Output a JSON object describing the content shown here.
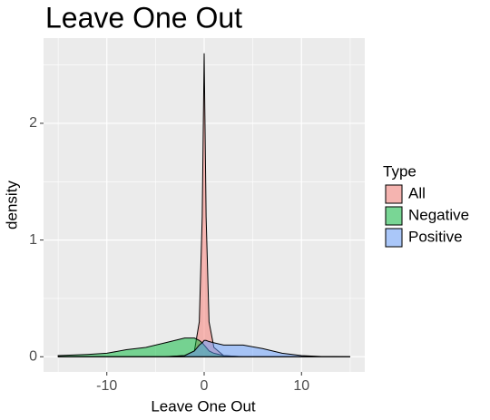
{
  "chart_data": {
    "type": "density",
    "title": "Leave One Out",
    "x_label": "Leave One Out",
    "y_label": "density",
    "legend_title": "Type",
    "x": [
      -15,
      -12,
      -10,
      -8,
      -6,
      -4,
      -2,
      -1,
      -0.5,
      -0.2,
      0,
      0.2,
      0.5,
      1,
      2,
      4,
      6,
      8,
      10,
      12,
      15
    ],
    "series": [
      {
        "name": "All",
        "color": "#F8766D",
        "values": [
          0,
          0,
          0,
          0,
          0,
          0,
          0.01,
          0.05,
          0.3,
          1.2,
          2.6,
          1.2,
          0.3,
          0.08,
          0.01,
          0,
          0,
          0,
          0,
          0,
          0
        ]
      },
      {
        "name": "Negative",
        "color": "#00BA38",
        "values": [
          0.01,
          0.02,
          0.03,
          0.06,
          0.08,
          0.12,
          0.16,
          0.16,
          0.14,
          0.12,
          0.1,
          0.08,
          0.05,
          0.03,
          0.01,
          0,
          0,
          0,
          0,
          0,
          0
        ]
      },
      {
        "name": "Positive",
        "color": "#619CFF",
        "values": [
          0,
          0,
          0,
          0,
          0,
          0,
          0.01,
          0.05,
          0.1,
          0.12,
          0.14,
          0.14,
          0.13,
          0.12,
          0.1,
          0.1,
          0.07,
          0.03,
          0.01,
          0.002,
          0
        ]
      }
    ],
    "fill_opacity": 0.5,
    "xlim": [
      -16.5,
      16.5
    ],
    "xticks": [
      -10,
      0,
      10
    ],
    "xminor": [
      -15,
      -5,
      5,
      15
    ],
    "ylim": [
      -0.13,
      2.73
    ],
    "yticks": [
      0,
      1,
      2
    ],
    "yminor": [
      0.5,
      1.5,
      2.5
    ],
    "grid": true
  }
}
